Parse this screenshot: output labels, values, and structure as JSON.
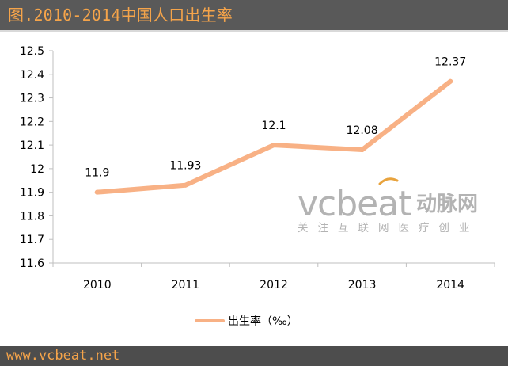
{
  "title": "图.2010-2014中国人口出生率",
  "footer": "www.vcbeat.net",
  "watermark": {
    "brand_latin": "vcbeat",
    "brand_cn": "动脉网",
    "slogan": "关注互联网医疗创业",
    "colors": {
      "text": "#b3b3b3",
      "accent": "#e8a33d"
    }
  },
  "colors": {
    "title_bar": "#595959",
    "title_text": "#f5a44a",
    "footer_bar": "#4d4d4d",
    "series_line": "#f8b185",
    "axis": "#bfbfbf",
    "label_text": "#000000"
  },
  "chart_data": {
    "type": "line",
    "categories": [
      "2010",
      "2011",
      "2012",
      "2013",
      "2014"
    ],
    "series": [
      {
        "name": "出生率（‰）",
        "values": [
          11.9,
          11.93,
          12.1,
          12.08,
          12.37
        ]
      }
    ],
    "data_labels": [
      "11.9",
      "11.93",
      "12.1",
      "12.08",
      "12.37"
    ],
    "ylim": [
      11.6,
      12.5
    ],
    "y_ticks": [
      "11.6",
      "11.7",
      "11.8",
      "11.9",
      "12",
      "12.1",
      "12.2",
      "12.3",
      "12.4",
      "12.5"
    ],
    "grid": false,
    "legend": "bottom"
  }
}
